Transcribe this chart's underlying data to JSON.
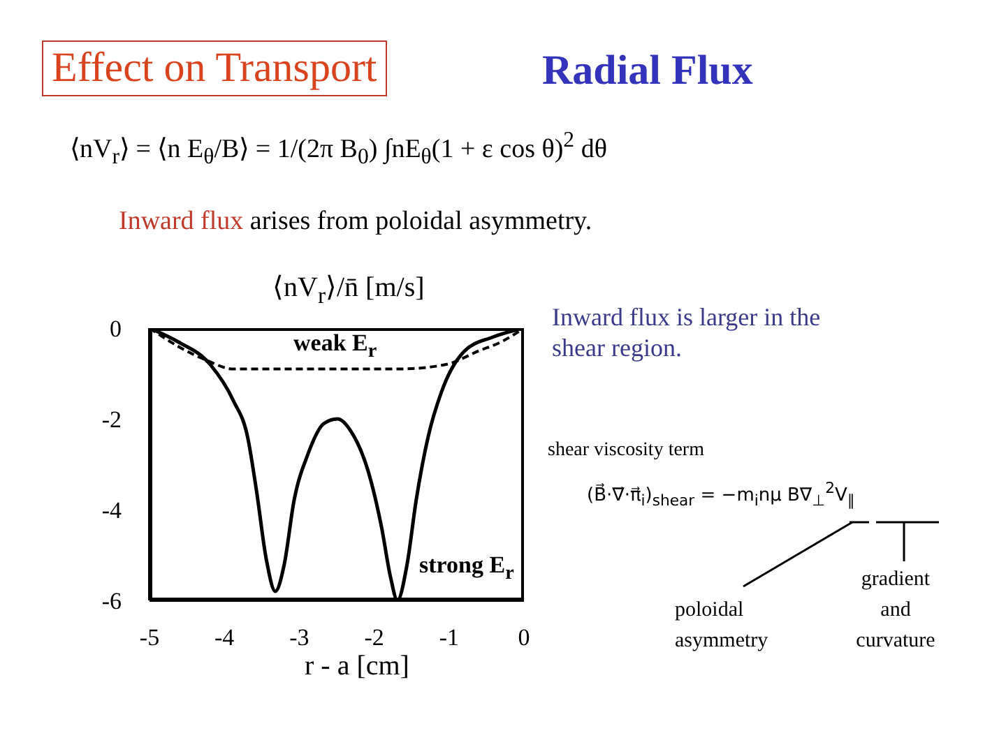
{
  "chart_data": {
    "type": "line",
    "title": "Effect on Transport",
    "subtitle": "Radial Flux",
    "xlabel": "r - a [cm]",
    "ylabel": "⟨nV$_{r}$⟩/n̄ [m/s]",
    "xlim": [
      -5,
      0
    ],
    "xticks": [
      -5,
      -4,
      -3,
      -2,
      -1,
      0
    ],
    "ylim": [
      -6,
      0
    ],
    "yticks": [
      -6,
      -4,
      -2,
      0
    ],
    "grid": false,
    "legend": false,
    "marker": "none",
    "series": [
      {
        "name": "weak E$_{r}$",
        "color": "#000000",
        "line_style": "dashed",
        "x": [
          -5,
          -4.62,
          -4.25,
          -3.88,
          -3.38,
          -2.95,
          -2.4,
          -1.65,
          -1.04,
          -0.6,
          -0.3,
          0
        ],
        "values": [
          0,
          -0.4,
          -0.7,
          -0.9,
          -0.9,
          -0.9,
          -0.9,
          -0.9,
          -0.8,
          -0.5,
          -0.3,
          0
        ]
      },
      {
        "name": "strong E$_{r}$",
        "color": "#000000",
        "line_style": "solid",
        "x": [
          -5,
          -4.62,
          -4.19,
          -3.88,
          -3.69,
          -3.57,
          -3.44,
          -3.32,
          -3.2,
          -3.07,
          -2.89,
          -2.67,
          -2.49,
          -2.3,
          -2.09,
          -1.9,
          -1.78,
          -1.69,
          -1.56,
          -1.44,
          -1.28,
          -1.1,
          -0.79,
          -0.42,
          0
        ],
        "values": [
          0,
          -0.3,
          -0.8,
          -1.6,
          -2.4,
          -3.6,
          -5.1,
          -5.8,
          -5.2,
          -3.8,
          -2.8,
          -2.1,
          -2.0,
          -2.3,
          -3.1,
          -4.4,
          -5.5,
          -6.0,
          -5.2,
          -3.8,
          -2.4,
          -1.4,
          -0.5,
          -0.2,
          0
        ]
      }
    ],
    "annotations": [
      "⟨nV$_{r}$⟩ = ⟨n E$_{θ}$/B⟩ = 1/(2π B$_{0}$) ∫nE$_{θ}$(1 + ε cos θ)$^{2}$ dθ",
      "Inward flux arises from poloidal asymmetry.",
      "Inward flux is larger in the shear region.",
      "shear viscosity term",
      "(B⃗·∇⃗·π⃗$_{i}$)$_{shear}$ = −m$_{i}$nμ B∇$_{⊥}$$^{2}$V$_{∥}$",
      "poloidal asymmetry",
      "gradient and curvature"
    ]
  }
}
